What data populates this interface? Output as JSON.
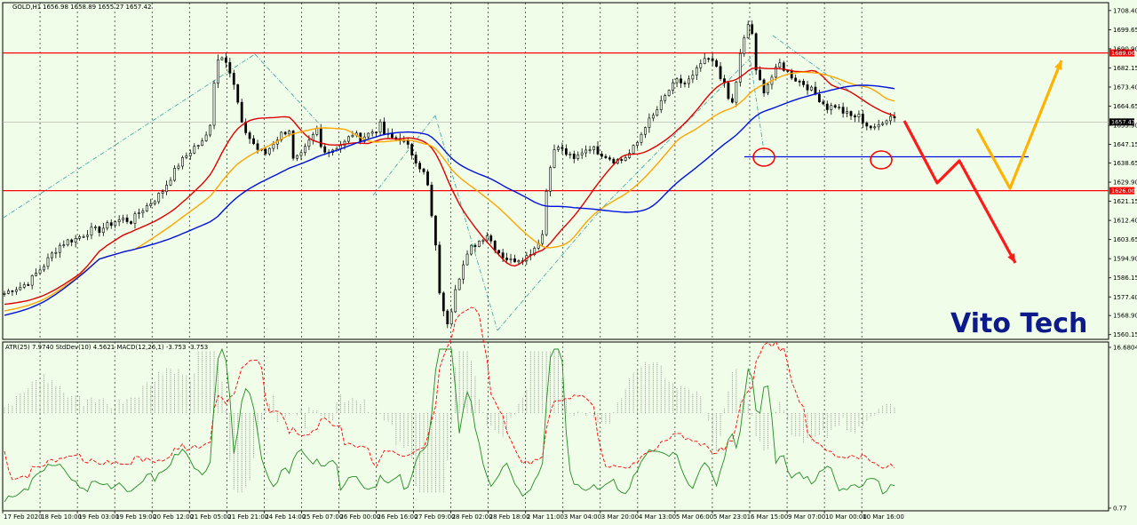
{
  "chart_data": [
    {
      "type": "candlestick",
      "symbol_header": "GOLD,H1",
      "ohlc_header": "1656.98 1658.89 1655.27 1657.42",
      "current_price_label": "1657.42",
      "ylim": [
        1558,
        1712
      ],
      "y_ticks": [
        "1708.40",
        "1699.65",
        "1690.90",
        "1682.15",
        "1673.40",
        "1664.65",
        "1655.90",
        "1647.15",
        "1638.65",
        "1629.90",
        "1621.15",
        "1612.40",
        "1603.65",
        "1594.90",
        "1586.15",
        "1577.40",
        "1568.90",
        "1560.15"
      ],
      "x_ticks": [
        "17 Feb 2020",
        "18 Feb 10:00",
        "19 Feb 03:00",
        "19 Feb 19:00",
        "20 Feb 12:00",
        "21 Feb 05:00",
        "21 Feb 21:00",
        "24 Feb 14:00",
        "25 Feb 07:00",
        "26 Feb 00:00",
        "26 Feb 16:00",
        "27 Feb 09:00",
        "28 Feb 02:00",
        "28 Feb 18:00",
        "2 Mar 11:00",
        "3 Mar 04:00",
        "3 Mar 20:00",
        "4 Mar 13:00",
        "5 Mar 06:00",
        "5 Mar 23:01",
        "6 Mar 15:00",
        "9 Mar 07:00",
        "10 Mar 00:00",
        "10 Mar 16:00"
      ],
      "resistance": {
        "price": 1689.0,
        "label": "1689.00",
        "color": "#ff0000"
      },
      "support": {
        "price": 1626.0,
        "label": "1626.00",
        "color": "#ff0000"
      },
      "blue_level": 1641.5,
      "key_points": [
        [
          0,
          1579
        ],
        [
          2,
          1581
        ],
        [
          4,
          1582
        ],
        [
          6,
          1584
        ],
        [
          8,
          1588
        ],
        [
          10,
          1592
        ],
        [
          12,
          1597
        ],
        [
          14,
          1601
        ],
        [
          16,
          1603
        ],
        [
          18,
          1604
        ],
        [
          20,
          1606
        ],
        [
          22,
          1608
        ],
        [
          24,
          1608
        ],
        [
          26,
          1610
        ],
        [
          28,
          1612
        ],
        [
          30,
          1613
        ],
        [
          32,
          1612
        ],
        [
          34,
          1616
        ],
        [
          36,
          1619
        ],
        [
          38,
          1622
        ],
        [
          40,
          1626
        ],
        [
          42,
          1632
        ],
        [
          44,
          1638
        ],
        [
          46,
          1642
        ],
        [
          48,
          1646
        ],
        [
          50,
          1648
        ],
        [
          51,
          1651
        ],
        [
          52,
          1657
        ],
        [
          53,
          1676
        ],
        [
          54,
          1686
        ],
        [
          55,
          1688
        ],
        [
          56,
          1686
        ],
        [
          57,
          1680
        ],
        [
          58,
          1674
        ],
        [
          59,
          1666
        ],
        [
          60,
          1656
        ],
        [
          62,
          1650
        ],
        [
          64,
          1645
        ],
        [
          66,
          1643
        ],
        [
          68,
          1648
        ],
        [
          70,
          1652
        ],
        [
          72,
          1654
        ],
        [
          73,
          1640
        ],
        [
          75,
          1642
        ],
        [
          77,
          1648
        ],
        [
          79,
          1654
        ],
        [
          80,
          1646
        ],
        [
          82,
          1644
        ],
        [
          84,
          1646
        ],
        [
          86,
          1648
        ],
        [
          88,
          1652
        ],
        [
          90,
          1650
        ],
        [
          92,
          1652
        ],
        [
          94,
          1654
        ],
        [
          95,
          1656
        ],
        [
          96,
          1652
        ],
        [
          98,
          1650
        ],
        [
          100,
          1650
        ],
        [
          102,
          1646
        ],
        [
          104,
          1640
        ],
        [
          106,
          1634
        ],
        [
          107,
          1628
        ],
        [
          108,
          1614
        ],
        [
          109,
          1600
        ],
        [
          110,
          1580
        ],
        [
          111,
          1570
        ],
        [
          112,
          1566
        ],
        [
          113,
          1572
        ],
        [
          114,
          1582
        ],
        [
          116,
          1592
        ],
        [
          118,
          1600
        ],
        [
          120,
          1603
        ],
        [
          122,
          1606
        ],
        [
          124,
          1600
        ],
        [
          126,
          1596
        ],
        [
          128,
          1594
        ],
        [
          130,
          1595
        ],
        [
          132,
          1596
        ],
        [
          134,
          1600
        ],
        [
          136,
          1606
        ],
        [
          137,
          1626
        ],
        [
          138,
          1638
        ],
        [
          139,
          1644
        ],
        [
          140,
          1646
        ],
        [
          142,
          1643
        ],
        [
          144,
          1640
        ],
        [
          146,
          1644
        ],
        [
          148,
          1646
        ],
        [
          150,
          1644
        ],
        [
          152,
          1642
        ],
        [
          154,
          1640
        ],
        [
          156,
          1640
        ],
        [
          158,
          1643
        ],
        [
          160,
          1648
        ],
        [
          162,
          1656
        ],
        [
          164,
          1660
        ],
        [
          166,
          1666
        ],
        [
          168,
          1672
        ],
        [
          170,
          1676
        ],
        [
          172,
          1675
        ],
        [
          174,
          1678
        ],
        [
          176,
          1684
        ],
        [
          178,
          1686
        ],
        [
          180,
          1683
        ],
        [
          182,
          1674
        ],
        [
          183,
          1668
        ],
        [
          184,
          1666
        ],
        [
          185,
          1676
        ],
        [
          186,
          1688
        ],
        [
          187,
          1695
        ],
        [
          188,
          1702
        ],
        [
          189,
          1698
        ],
        [
          190,
          1680
        ],
        [
          192,
          1672
        ],
        [
          194,
          1678
        ],
        [
          196,
          1684
        ],
        [
          198,
          1680
        ],
        [
          200,
          1677
        ],
        [
          202,
          1675
        ],
        [
          204,
          1672
        ],
        [
          206,
          1668
        ],
        [
          208,
          1664
        ],
        [
          210,
          1665
        ],
        [
          212,
          1662
        ],
        [
          214,
          1660
        ],
        [
          216,
          1660
        ],
        [
          218,
          1656
        ],
        [
          220,
          1654
        ],
        [
          222,
          1658
        ],
        [
          224,
          1660
        ]
      ],
      "annotations": {
        "circles": [
          [
            860,
            177
          ],
          [
            992,
            180
          ]
        ],
        "red_arrows": [
          [
            [
              1018,
              136
            ],
            [
              1055,
              206
            ],
            [
              1080,
              181
            ],
            [
              1143,
              296
            ]
          ]
        ],
        "orange_arrows": [
          [
            [
              1100,
              145
            ],
            [
              1137,
              212
            ],
            [
              1195,
              68
            ]
          ]
        ]
      },
      "watermark": "Vito Tech"
    },
    {
      "type": "indicator",
      "header": "ATR(25) 7.9740  StdDev(10) 4.5621  MACD(12,26,1) -3.753 -3.753",
      "ylim": [
        0.77,
        16.6804
      ],
      "y_ticks": [
        "16.6804",
        "0.77"
      ],
      "series": [
        {
          "name": "ATR(25)",
          "color": "#ff0000",
          "style": "dashed"
        },
        {
          "name": "StdDev(10)",
          "color": "#228b22",
          "style": "solid"
        },
        {
          "name": "MACD(12,26,1)",
          "color": "#a9a9a9",
          "style": "histogram"
        }
      ]
    }
  ],
  "colors": {
    "background": "#f0fde9",
    "grid": "#000000",
    "ma_fast": "#e00000",
    "ma_mid": "#ffa500",
    "ma_slow": "#0011dd",
    "candle": "#000000",
    "channel": "#3aa0a0"
  }
}
